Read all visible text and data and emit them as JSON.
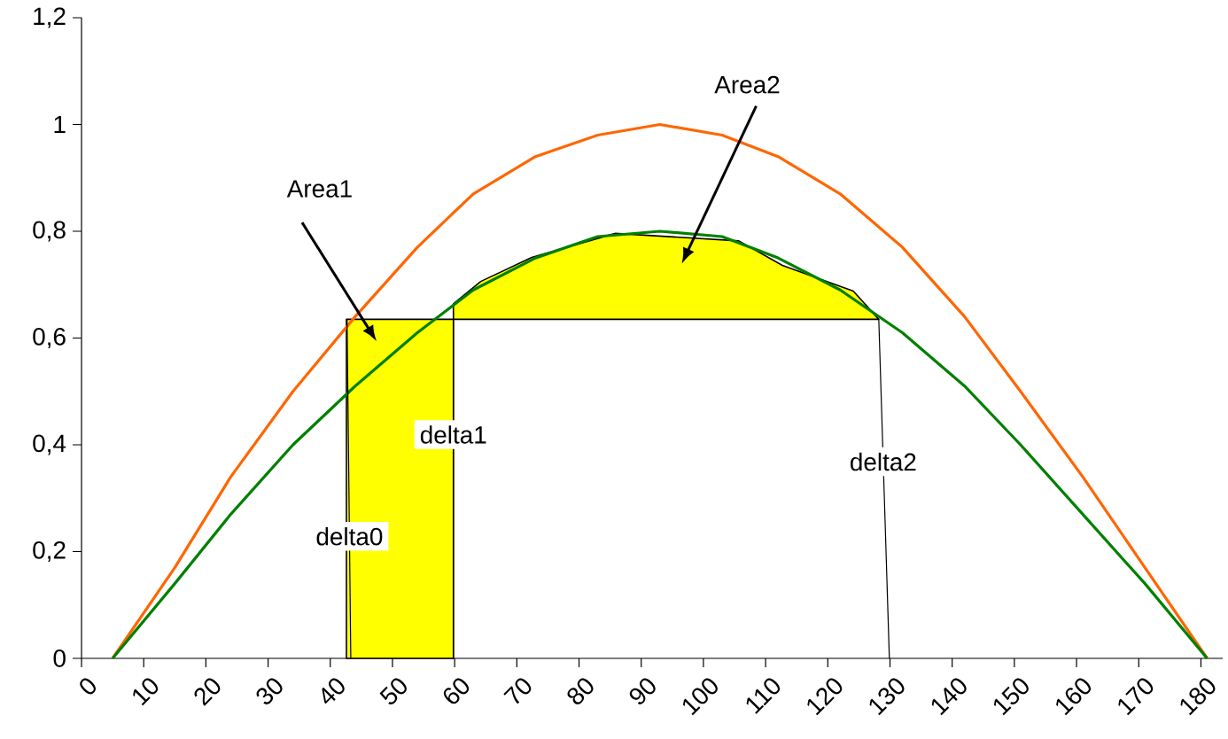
{
  "chart_data": {
    "type": "line",
    "xlim": [
      0,
      183.5
    ],
    "ylim": [
      0,
      1.2
    ],
    "xticks": [
      0,
      10,
      20,
      30,
      40,
      50,
      60,
      70,
      80,
      90,
      100,
      110,
      120,
      130,
      140,
      150,
      160,
      170,
      180
    ],
    "yticks": [
      {
        "value": 0,
        "label": "0"
      },
      {
        "value": 0.2,
        "label": "0,2"
      },
      {
        "value": 0.4,
        "label": "0,4"
      },
      {
        "value": 0.6,
        "label": "0,6"
      },
      {
        "value": 0.8,
        "label": "0,8"
      },
      {
        "value": 1,
        "label": "1"
      },
      {
        "value": 1.2,
        "label": "1,2"
      }
    ],
    "x": [
      5,
      15,
      24,
      34,
      44,
      54,
      63,
      73,
      83,
      93,
      103,
      112,
      122,
      132,
      142,
      151,
      161,
      171,
      181
    ],
    "series": [
      {
        "type": "area",
        "color": "#ffff00",
        "x": [
          42.6,
          42.6,
          59.8,
          59.8
        ],
        "values": [
          0,
          0.635,
          0.635,
          0
        ]
      },
      {
        "type": "area",
        "color": "#ffff00",
        "x": [
          59.8,
          59.8,
          64.2,
          72.4,
          85.2,
          85.8,
          105.7,
          112.7,
          124.1,
          128.2
        ],
        "values": [
          0.635,
          0.664,
          0.706,
          0.751,
          0.794,
          0.796,
          0.782,
          0.736,
          0.688,
          0.635
        ]
      },
      {
        "color": "#ff6600",
        "values": [
          0,
          0.17,
          0.34,
          0.5,
          0.64,
          0.77,
          0.87,
          0.94,
          0.98,
          1.0,
          0.98,
          0.94,
          0.87,
          0.77,
          0.64,
          0.5,
          0.34,
          0.17,
          0
        ]
      },
      {
        "color": "#008000",
        "values": [
          0,
          0.14,
          0.27,
          0.4,
          0.51,
          0.61,
          0.69,
          0.75,
          0.79,
          0.8,
          0.79,
          0.75,
          0.69,
          0.61,
          0.51,
          0.4,
          0.27,
          0.14,
          0
        ]
      },
      {
        "name": "delta0",
        "color": "#000000",
        "x": [
          42.7,
          43.3
        ],
        "values": [
          0.635,
          0
        ]
      },
      {
        "name": "delta1",
        "color": "#000000",
        "x": [
          59.8,
          59.8
        ],
        "values": [
          0.635,
          0
        ]
      },
      {
        "name": "delta2",
        "color": "#000000",
        "x": [
          128.2,
          129.9
        ],
        "values": [
          0.635,
          0
        ]
      }
    ],
    "annotations": [
      "Area1",
      "Area2"
    ],
    "grid": false
  }
}
